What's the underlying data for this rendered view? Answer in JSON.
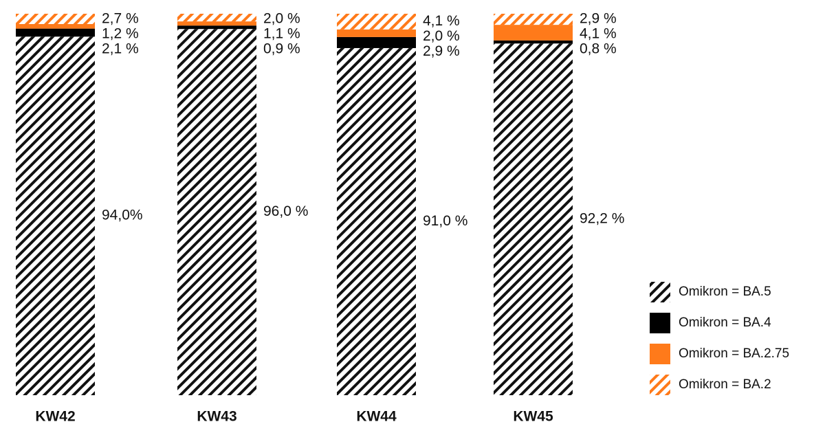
{
  "chart_data": {
    "type": "bar",
    "stacked": true,
    "normalized": true,
    "categories": [
      "KW42",
      "KW43",
      "KW44",
      "KW45"
    ],
    "series": [
      {
        "name": "Omikron = BA.5",
        "values": [
          94.0,
          96.0,
          91.0,
          92.2
        ],
        "labels": [
          "94,0%",
          "96,0 %",
          "91,0 %",
          "92,2 %"
        ],
        "pattern": "hatch",
        "color": "#111111"
      },
      {
        "name": "Omikron = BA.4",
        "values": [
          2.1,
          0.9,
          2.9,
          0.8
        ],
        "labels": [
          "2,1 %",
          "0,9 %",
          "2,9 %",
          "0,8 %"
        ],
        "pattern": "solid",
        "color": "#000000"
      },
      {
        "name": "Omikron = BA.2.75",
        "values": [
          1.2,
          1.1,
          2.0,
          4.1
        ],
        "labels": [
          "1,2 %",
          "1,1 %",
          "2,0 %",
          "4,1 %"
        ],
        "pattern": "solid",
        "color": "#ff7a1a"
      },
      {
        "name": "Omikron = BA.2",
        "values": [
          2.7,
          2.0,
          4.1,
          2.9
        ],
        "labels": [
          "2,7 %",
          "2,0 %",
          "4,1 %",
          "2,9 %"
        ],
        "pattern": "hatch",
        "color": "#ff7a1a"
      }
    ],
    "legend": {
      "placement": "bottom-right",
      "order": [
        "Omikron = BA.5",
        "Omikron = BA.4",
        "Omikron = BA.2.75",
        "Omikron = BA.2"
      ]
    },
    "title": "",
    "xlabel": "",
    "ylabel": "",
    "ylim": [
      0,
      100
    ],
    "grid": false
  }
}
